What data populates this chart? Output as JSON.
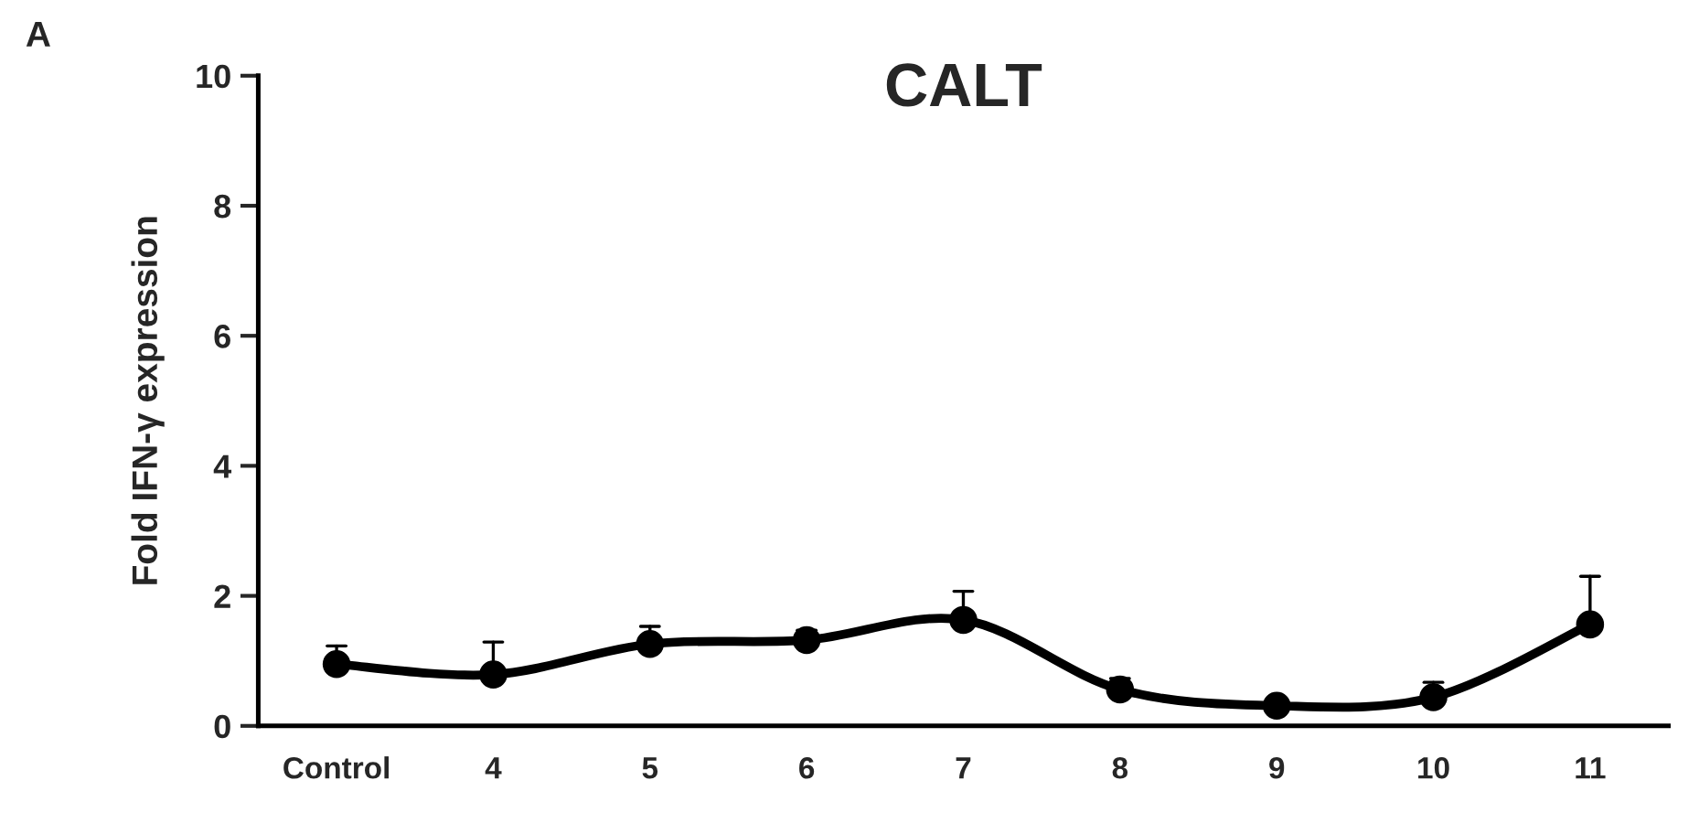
{
  "chart_data": {
    "type": "line",
    "title": "CALT",
    "ylabel": "Fold IFN-γ expression",
    "annotations": [
      "A"
    ],
    "categories": [
      "Control",
      "4",
      "5",
      "6",
      "7",
      "8",
      "9",
      "10",
      "11"
    ],
    "series": [
      {
        "color": "#000000",
        "values": [
          0.95,
          0.79,
          1.26,
          1.32,
          1.63,
          0.56,
          0.31,
          0.44,
          1.56
        ],
        "errors": [
          [
            0.95,
            1.23
          ],
          [
            0.79,
            1.29
          ],
          [
            1.26,
            1.53
          ],
          [
            1.32,
            1.47
          ],
          [
            1.63,
            2.07
          ],
          [
            0.56,
            0.73
          ],
          null,
          [
            0.44,
            0.67
          ],
          [
            1.56,
            2.3
          ]
        ]
      }
    ],
    "ylim": [
      0,
      10
    ],
    "yticks": [
      0,
      2,
      4,
      6,
      8,
      10
    ],
    "grid": false,
    "legend": false,
    "marker": "circle",
    "line_style": "solid"
  }
}
